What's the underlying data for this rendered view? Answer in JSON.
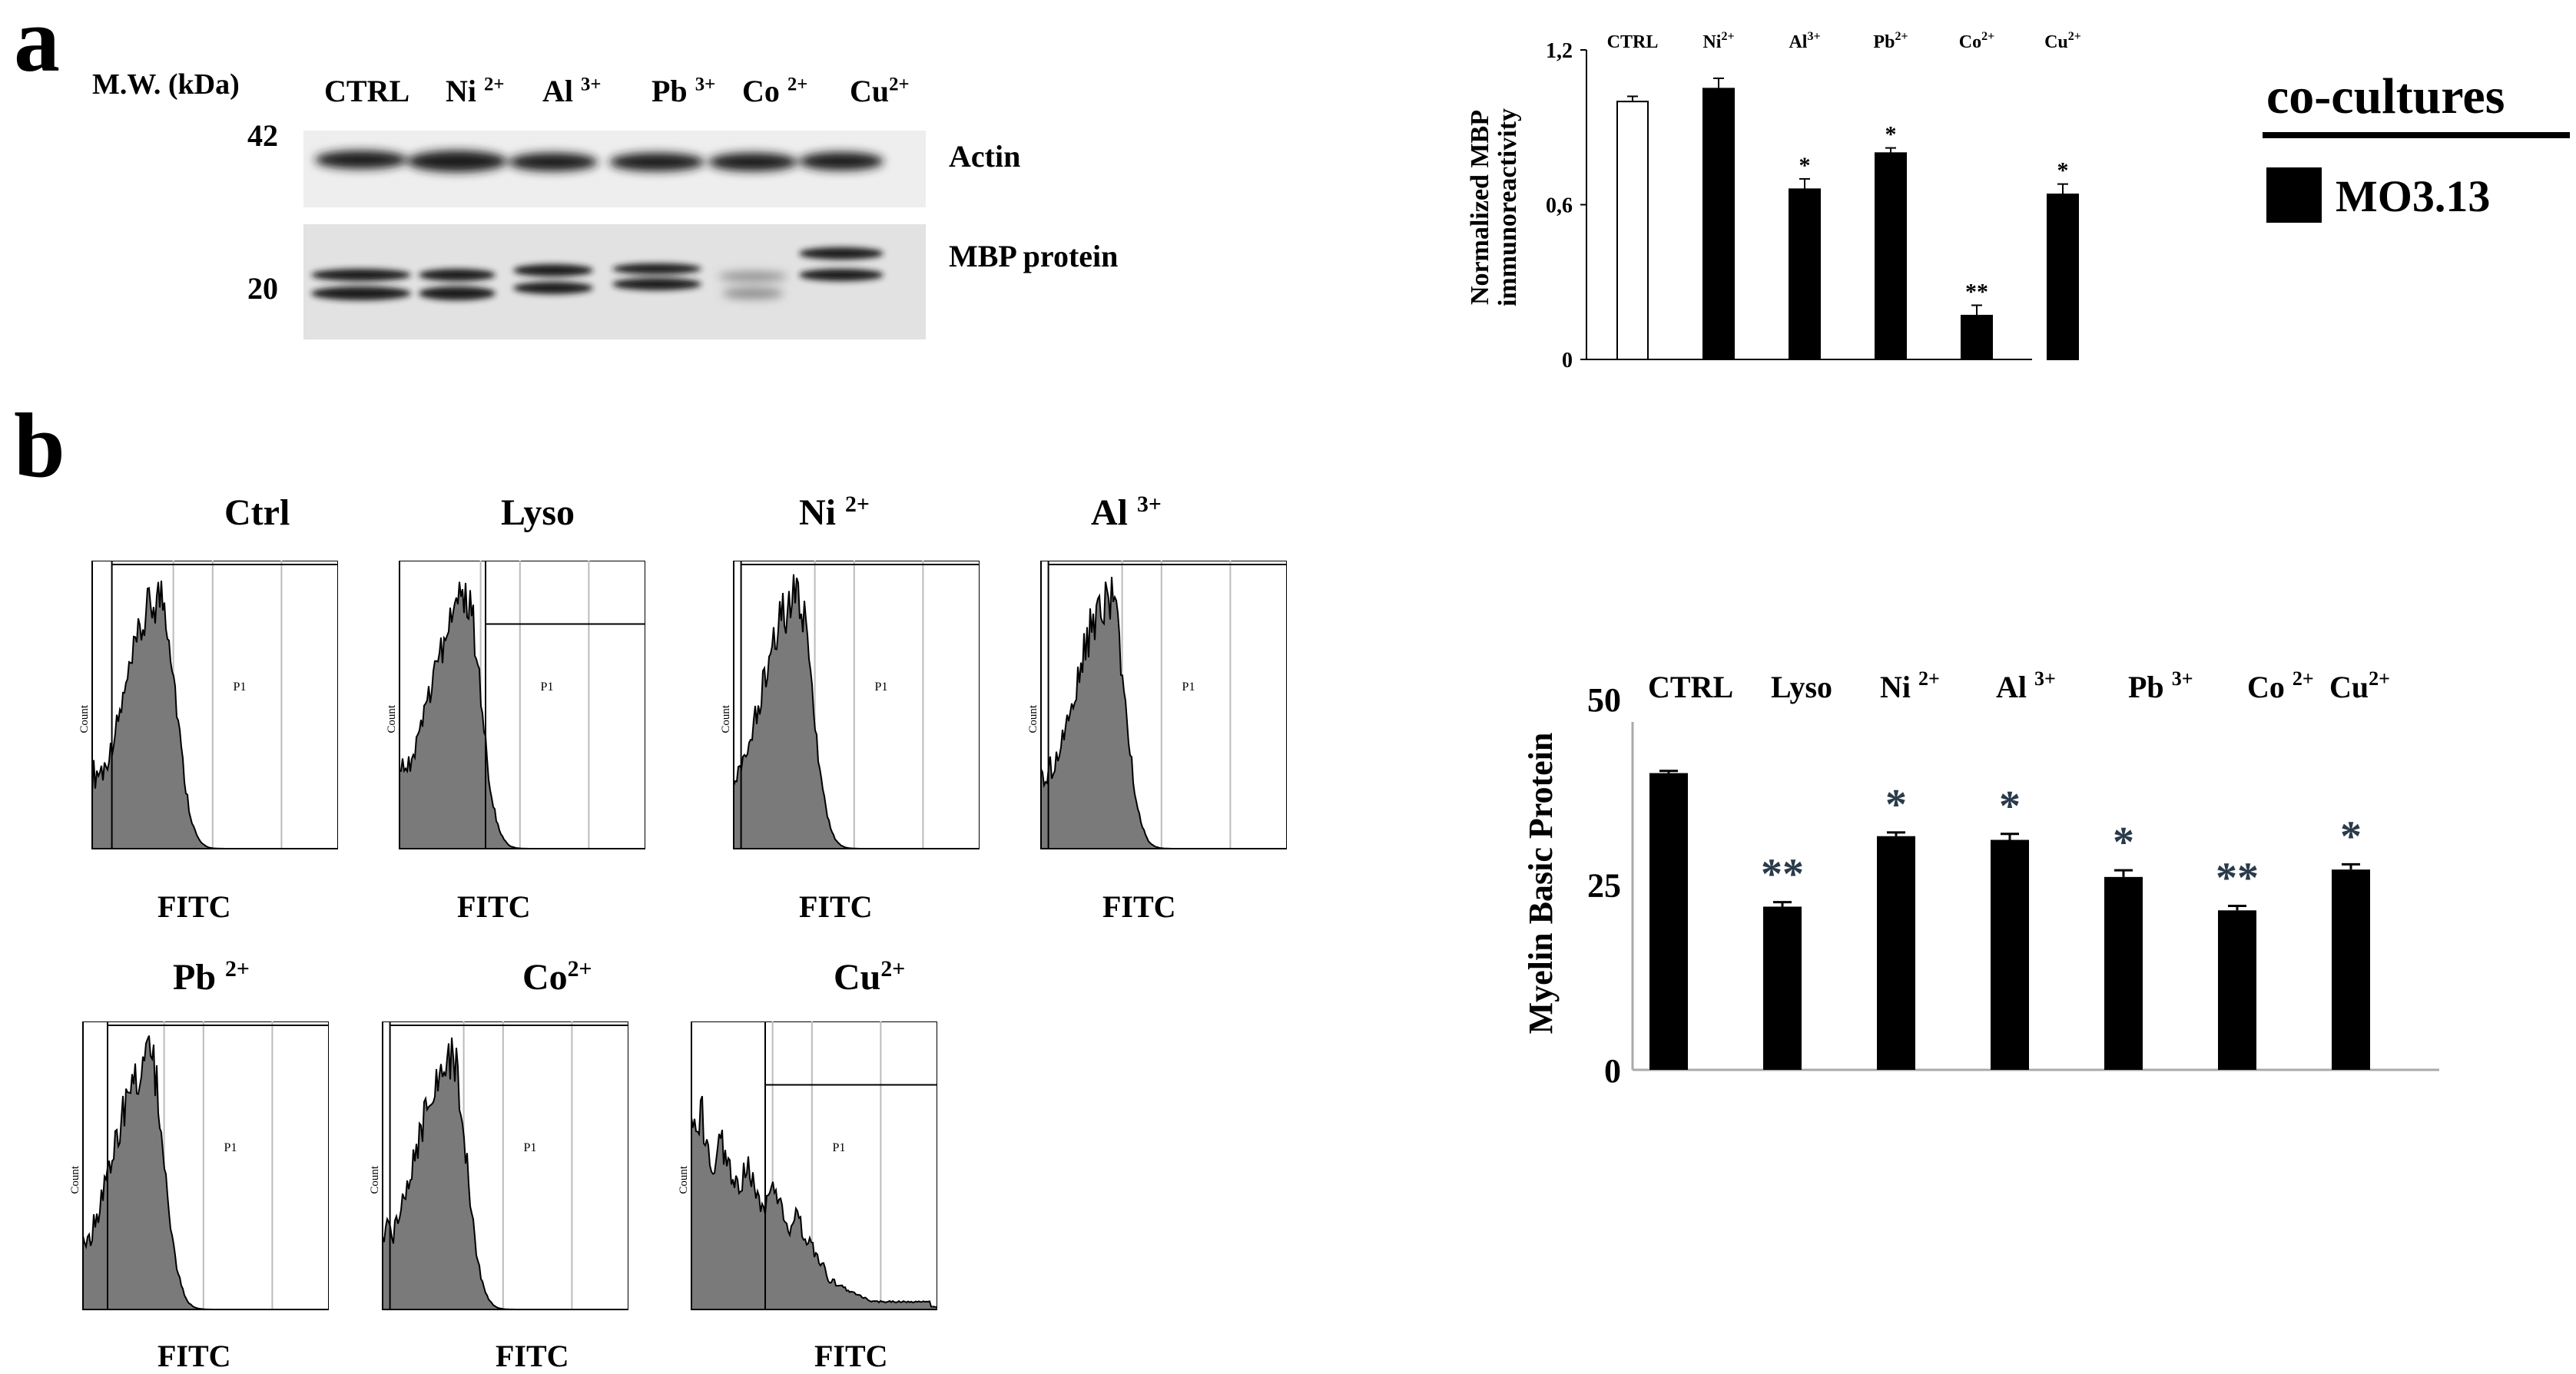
{
  "panel_a": {
    "letter": "a",
    "mw_label": "M.W. (kDa)",
    "mw_markers": [
      "42",
      "20"
    ],
    "lanes": [
      {
        "name": "CTRL",
        "sup": ""
      },
      {
        "name": "Ni",
        "sup": "2+"
      },
      {
        "name": "Al",
        "sup": "3+"
      },
      {
        "name": "Pb",
        "sup": "3+"
      },
      {
        "name": "Co",
        "sup": "2+"
      },
      {
        "name": "Cu",
        "sup": "2+"
      }
    ],
    "band_labels": [
      "Actin",
      "MBP protein"
    ]
  },
  "legend": {
    "title": "co-cultures",
    "entry": "MO3.13",
    "swatch_color": "#000000"
  },
  "panel_b": {
    "letter": "b",
    "histograms": [
      {
        "title": "Ctrl",
        "sup": "",
        "xlabel": "FITC",
        "gate": "P1"
      },
      {
        "title": "Lyso",
        "sup": "",
        "xlabel": "FITC",
        "gate": "P1"
      },
      {
        "title": "Ni ",
        "sup": "2+",
        "xlabel": "FITC",
        "gate": "P1"
      },
      {
        "title": "Al ",
        "sup": "3+",
        "xlabel": "FITC",
        "gate": "P1"
      },
      {
        "title": "Pb ",
        "sup": "2+",
        "xlabel": "FITC",
        "gate": "P1"
      },
      {
        "title": "Co",
        "sup": "2+",
        "xlabel": "FITC",
        "gate": "P1"
      },
      {
        "title": "Cu",
        "sup": "2+",
        "xlabel": "FITC",
        "gate": "P1"
      }
    ],
    "hist_ylabel": "Count"
  },
  "chart_data": [
    {
      "type": "bar",
      "title": "",
      "ylabel": "Normalized MBP immunoreactivity",
      "ylabel_lines": [
        "Normalized MBP",
        "immunoreactivity"
      ],
      "categories": [
        "CTRL",
        "Ni 2+",
        "Al 3+",
        "Pb 2+",
        "Co 2+",
        "Cu 2+"
      ],
      "category_labels": [
        {
          "name": "CTRL",
          "sup": ""
        },
        {
          "name": "Ni",
          "sup": "2+"
        },
        {
          "name": "Al",
          "sup": "3+"
        },
        {
          "name": "Pb",
          "sup": "2+"
        },
        {
          "name": "Co",
          "sup": "2+"
        },
        {
          "name": "Cu",
          "sup": "2+"
        }
      ],
      "values": [
        1.0,
        1.05,
        0.66,
        0.8,
        0.17,
        0.64
      ],
      "errors": [
        0.02,
        0.04,
        0.04,
        0.02,
        0.04,
        0.04
      ],
      "significance": [
        "",
        "",
        "*",
        "*",
        "**",
        "*"
      ],
      "fills": [
        "#ffffff",
        "#000000",
        "#000000",
        "#000000",
        "#000000",
        "#000000"
      ],
      "yticks": [
        "0",
        "0,6",
        "1,2"
      ],
      "ytick_values": [
        0,
        0.6,
        1.2
      ],
      "ylim": [
        0,
        1.2
      ]
    },
    {
      "type": "bar",
      "title": "",
      "ylabel": "Myelin Basic Protein",
      "categories": [
        "CTRL",
        "Lyso",
        "Ni 2+",
        "Al 3+",
        "Pb 3+",
        "Co 2+",
        "Cu2+"
      ],
      "category_labels": [
        {
          "name": "CTRL",
          "sup": ""
        },
        {
          "name": "Lyso",
          "sup": ""
        },
        {
          "name": "Ni ",
          "sup": "2+"
        },
        {
          "name": "Al ",
          "sup": "3+"
        },
        {
          "name": "Pb ",
          "sup": "3+"
        },
        {
          "name": "Co ",
          "sup": "2+"
        },
        {
          "name": "Cu",
          "sup": "2+"
        }
      ],
      "values": [
        40.0,
        22.0,
        31.5,
        31.0,
        26.0,
        21.5,
        27.0
      ],
      "errors": [
        0.3,
        0.6,
        0.5,
        0.8,
        0.9,
        0.6,
        0.7
      ],
      "significance": [
        "",
        "**",
        "*",
        "*",
        "*",
        "**",
        "*"
      ],
      "yticks": [
        "0",
        "25",
        "50"
      ],
      "ytick_values": [
        0,
        25,
        50
      ],
      "ylim": [
        0,
        50
      ]
    }
  ]
}
